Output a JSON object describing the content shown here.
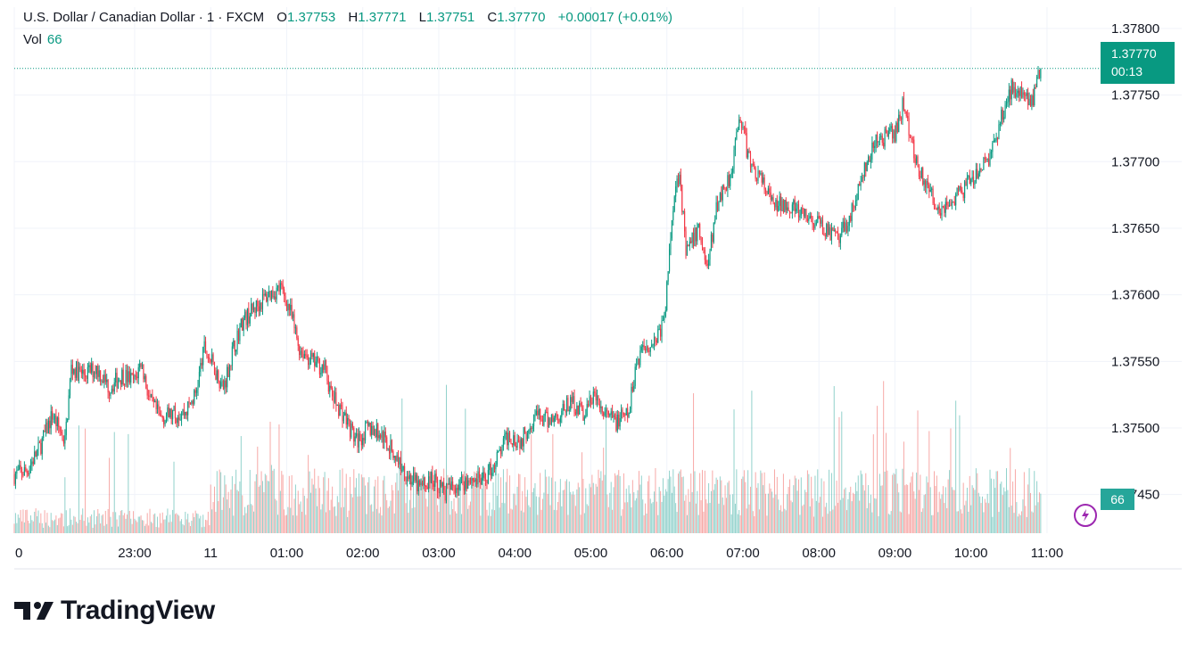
{
  "header": {
    "symbol_title": "U.S. Dollar / Canadian Dollar · 1 · FXCM",
    "open_label": "O",
    "open_value": "1.37753",
    "high_label": "H",
    "high_value": "1.37771",
    "low_label": "L",
    "low_value": "1.37751",
    "close_label": "C",
    "close_value": "1.37770",
    "change": "+0.00017 (+0.01%)",
    "volume_label": "Vol",
    "volume_value": "66"
  },
  "price_badge": {
    "price": "1.37770",
    "countdown": "00:13"
  },
  "volume_badge": "66",
  "brand": {
    "name": "TradingView"
  },
  "colors": {
    "up": "#089981",
    "down": "#f23645",
    "vol_up": "#26a69a",
    "vol_down": "#ef5350",
    "grid": "#f0f3fa",
    "text": "#131722"
  },
  "chart_data": {
    "type": "candlestick",
    "title": "U.S. Dollar / Canadian Dollar · 1 · FXCM",
    "y_ticks": [
      "1.37800",
      "1.37750",
      "1.37700",
      "1.37650",
      "1.37600",
      "1.37550",
      "1.37500",
      "1.37450"
    ],
    "ylim": [
      1.37421,
      1.37816
    ],
    "x_ticks": [
      "0",
      "23:00",
      "11",
      "01:00",
      "02:00",
      "03:00",
      "04:00",
      "05:00",
      "06:00",
      "07:00",
      "08:00",
      "09:00",
      "10:00",
      "11:00"
    ],
    "x_tick_minutes": [
      -95,
      0,
      60,
      120,
      180,
      240,
      300,
      360,
      420,
      480,
      540,
      600,
      660,
      720
    ],
    "x_start_minute": -95,
    "x_end_minute": 751,
    "last_price": 1.3777,
    "close_path": [
      [
        -95,
        1.37465
      ],
      [
        -85,
        1.37468
      ],
      [
        -75,
        1.37485
      ],
      [
        -65,
        1.3751
      ],
      [
        -55,
        1.3749
      ],
      [
        -50,
        1.37545
      ],
      [
        -40,
        1.3754
      ],
      [
        -30,
        1.37545
      ],
      [
        -20,
        1.3753
      ],
      [
        -10,
        1.3754
      ],
      [
        0,
        1.37535
      ],
      [
        5,
        1.3755
      ],
      [
        12,
        1.3752
      ],
      [
        20,
        1.37508
      ],
      [
        30,
        1.3751
      ],
      [
        40,
        1.37512
      ],
      [
        48,
        1.37525
      ],
      [
        55,
        1.3756
      ],
      [
        63,
        1.37545
      ],
      [
        70,
        1.3753
      ],
      [
        78,
        1.3756
      ],
      [
        85,
        1.3758
      ],
      [
        95,
        1.3759
      ],
      [
        105,
        1.376
      ],
      [
        115,
        1.37605
      ],
      [
        122,
        1.3759
      ],
      [
        130,
        1.3756
      ],
      [
        140,
        1.3755
      ],
      [
        150,
        1.37545
      ],
      [
        155,
        1.37525
      ],
      [
        165,
        1.3751
      ],
      [
        175,
        1.3749
      ],
      [
        185,
        1.375
      ],
      [
        195,
        1.37495
      ],
      [
        205,
        1.3748
      ],
      [
        215,
        1.37465
      ],
      [
        225,
        1.37455
      ],
      [
        235,
        1.37462
      ],
      [
        245,
        1.37452
      ],
      [
        255,
        1.37458
      ],
      [
        265,
        1.37462
      ],
      [
        275,
        1.3746
      ],
      [
        285,
        1.37475
      ],
      [
        295,
        1.37495
      ],
      [
        305,
        1.3749
      ],
      [
        315,
        1.3751
      ],
      [
        325,
        1.37505
      ],
      [
        335,
        1.3751
      ],
      [
        345,
        1.3752
      ],
      [
        355,
        1.3751
      ],
      [
        362,
        1.37525
      ],
      [
        370,
        1.3751
      ],
      [
        380,
        1.37505
      ],
      [
        390,
        1.3751
      ],
      [
        395,
        1.37545
      ],
      [
        400,
        1.3756
      ],
      [
        410,
        1.37565
      ],
      [
        418,
        1.3758
      ],
      [
        425,
        1.3767
      ],
      [
        430,
        1.37695
      ],
      [
        435,
        1.3763
      ],
      [
        445,
        1.3765
      ],
      [
        452,
        1.3762
      ],
      [
        460,
        1.3767
      ],
      [
        470,
        1.3769
      ],
      [
        478,
        1.37735
      ],
      [
        485,
        1.377
      ],
      [
        495,
        1.37685
      ],
      [
        505,
        1.37665
      ],
      [
        515,
        1.3767
      ],
      [
        525,
        1.3766
      ],
      [
        535,
        1.37655
      ],
      [
        545,
        1.3765
      ],
      [
        555,
        1.3764
      ],
      [
        565,
        1.3766
      ],
      [
        575,
        1.3769
      ],
      [
        585,
        1.37715
      ],
      [
        595,
        1.3772
      ],
      [
        600,
        1.3772
      ],
      [
        607,
        1.37745
      ],
      [
        615,
        1.37705
      ],
      [
        625,
        1.3768
      ],
      [
        635,
        1.37665
      ],
      [
        645,
        1.3767
      ],
      [
        655,
        1.3768
      ],
      [
        665,
        1.3769
      ],
      [
        675,
        1.37705
      ],
      [
        685,
        1.37735
      ],
      [
        692,
        1.37755
      ],
      [
        700,
        1.37755
      ],
      [
        708,
        1.37745
      ],
      [
        715,
        1.3777
      ]
    ]
  }
}
